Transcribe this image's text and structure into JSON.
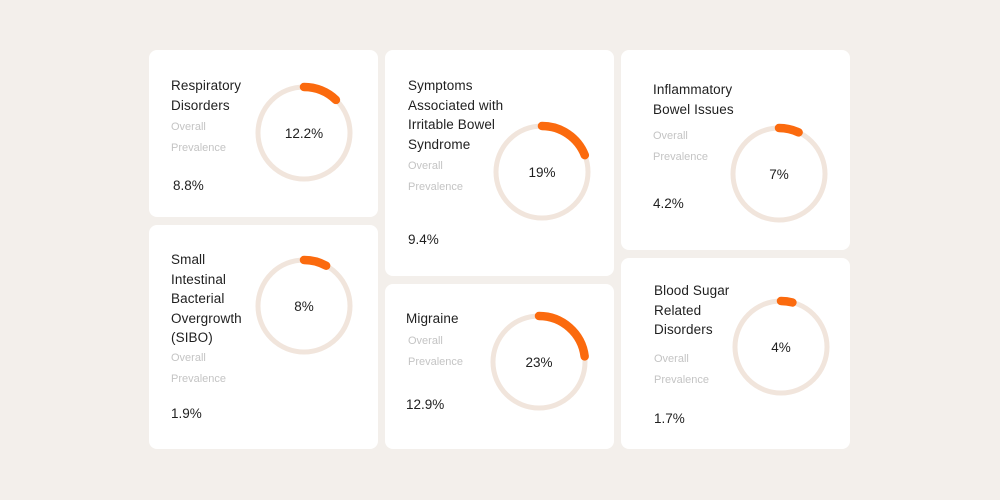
{
  "colors": {
    "background": "#f3efeb",
    "card": "#ffffff",
    "track": "#f1e5dc",
    "accent": "#fb6a0e",
    "muted_text": "#c4c4c4"
  },
  "chart_data": {
    "type": "donut",
    "subtitle_label_line1": "Overall",
    "subtitle_label_line2": "Prevalence",
    "items": [
      {
        "title": "Respiratory Disorders",
        "gauge_label": "12.2%",
        "gauge_value": 12.2,
        "overall_prevalence": "8.8%"
      },
      {
        "title": "Small Intestinal Bacterial Overgrowth (SIBO)",
        "gauge_label": "8%",
        "gauge_value": 8,
        "overall_prevalence": "1.9%"
      },
      {
        "title": "Symptoms Associated with Irritable Bowel Syndrome",
        "gauge_label": "19%",
        "gauge_value": 19,
        "overall_prevalence": "9.4%"
      },
      {
        "title": "Migraine",
        "gauge_label": "23%",
        "gauge_value": 23,
        "overall_prevalence": "12.9%"
      },
      {
        "title": "Inflammatory Bowel Issues",
        "gauge_label": "7%",
        "gauge_value": 7,
        "overall_prevalence": "4.2%"
      },
      {
        "title": "Blood Sugar Related Disorders",
        "gauge_label": "4%",
        "gauge_value": 4,
        "overall_prevalence": "1.7%"
      }
    ]
  }
}
